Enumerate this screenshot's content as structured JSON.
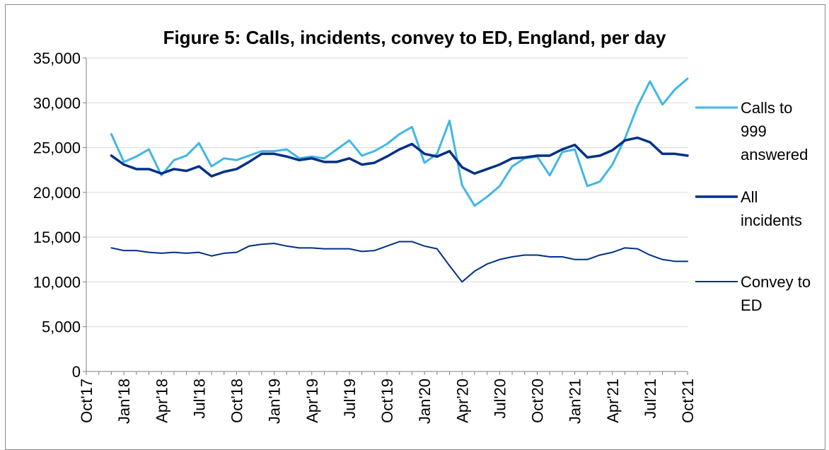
{
  "chart_data": {
    "type": "line",
    "title": "Figure 5: Calls, incidents, convey to ED, England, per day",
    "xlabel": "",
    "ylabel": "",
    "ylim": [
      0,
      35000
    ],
    "y_ticks": [
      "0",
      "5,000",
      "10,000",
      "15,000",
      "20,000",
      "25,000",
      "30,000",
      "35,000"
    ],
    "y_tick_values": [
      0,
      5000,
      10000,
      15000,
      20000,
      25000,
      30000,
      35000
    ],
    "x_ticks": [
      "Oct'17",
      "Jan'18",
      "Apr'18",
      "Jul'18",
      "Oct'18",
      "Jan'19",
      "Apr'19",
      "Jul'19",
      "Oct'19",
      "Jan'20",
      "Apr'20",
      "Jul'20",
      "Oct'20",
      "Jan'21",
      "Apr'21",
      "Jul'21",
      "Oct'21"
    ],
    "x": [
      "Dec'17",
      "Jan'18",
      "Feb'18",
      "Mar'18",
      "Apr'18",
      "May'18",
      "Jun'18",
      "Jul'18",
      "Aug'18",
      "Sep'18",
      "Oct'18",
      "Nov'18",
      "Dec'18",
      "Jan'19",
      "Feb'19",
      "Mar'19",
      "Apr'19",
      "May'19",
      "Jun'19",
      "Jul'19",
      "Aug'19",
      "Sep'19",
      "Oct'19",
      "Nov'19",
      "Dec'19",
      "Jan'20",
      "Feb'20",
      "Mar'20",
      "Apr'20",
      "May'20",
      "Jun'20",
      "Jul'20",
      "Aug'20",
      "Sep'20",
      "Oct'20",
      "Nov'20",
      "Dec'20",
      "Jan'21",
      "Feb'21",
      "Mar'21",
      "Apr'21",
      "May'21",
      "Jun'21",
      "Jul'21",
      "Aug'21",
      "Sep'21",
      "Oct'21"
    ],
    "series": [
      {
        "name": "Calls to 999 answered",
        "color": "#41b6e6",
        "width": 3,
        "values": [
          26500,
          23400,
          24000,
          24800,
          21900,
          23600,
          24100,
          25500,
          22900,
          23800,
          23600,
          24100,
          24600,
          24600,
          24800,
          23800,
          24000,
          23800,
          24800,
          25800,
          24100,
          24600,
          25400,
          26500,
          27300,
          23300,
          24300,
          28000,
          20800,
          18500,
          19500,
          20700,
          22900,
          23800,
          24000,
          21900,
          24500,
          24800,
          20700,
          21200,
          23100,
          26000,
          29600,
          32400,
          29800,
          31500,
          32700
        ]
      },
      {
        "name": "All incidents",
        "color": "#003087",
        "width": 3.5,
        "values": [
          24100,
          23100,
          22600,
          22600,
          22100,
          22600,
          22400,
          22900,
          21800,
          22300,
          22600,
          23400,
          24300,
          24300,
          24000,
          23600,
          23800,
          23400,
          23400,
          23800,
          23100,
          23300,
          24000,
          24800,
          25400,
          24300,
          24000,
          24600,
          22800,
          22100,
          22600,
          23100,
          23800,
          23900,
          24100,
          24100,
          24800,
          25300,
          23900,
          24100,
          24700,
          25800,
          26100,
          25600,
          24300,
          24300,
          24100
        ]
      },
      {
        "name": "Convey to ED",
        "color": "#003087",
        "width": 2,
        "values": [
          13800,
          13500,
          13500,
          13300,
          13200,
          13300,
          13200,
          13300,
          12900,
          13200,
          13300,
          14000,
          14200,
          14300,
          14000,
          13800,
          13800,
          13700,
          13700,
          13700,
          13400,
          13500,
          14000,
          14500,
          14500,
          14000,
          13700,
          11800,
          10000,
          11200,
          12000,
          12500,
          12800,
          13000,
          13000,
          12800,
          12800,
          12500,
          12500,
          13000,
          13300,
          13800,
          13700,
          13000,
          12500,
          12300,
          12300
        ]
      }
    ],
    "legend": [
      {
        "lines": [
          "Calls to",
          "999",
          "answered"
        ]
      },
      {
        "lines": [
          "All",
          "incidents"
        ]
      },
      {
        "lines": [
          "Convey to",
          "ED"
        ]
      }
    ],
    "legend_position": "right",
    "grid": "horizontal"
  }
}
